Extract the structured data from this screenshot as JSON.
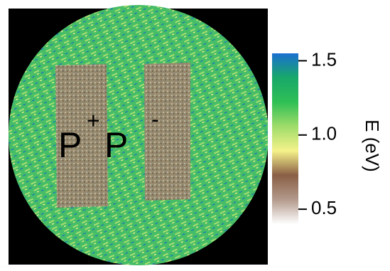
{
  "chart_data": {
    "type": "image",
    "annotations": [
      "P",
      "+",
      "P",
      "-"
    ],
    "colorbar": {
      "label": "E (eV)",
      "clim": [
        0.4,
        1.55
      ],
      "ticks": [
        0.5,
        {
          "value": 1,
          "label": "1.0"
        },
        1.5
      ],
      "colormap": [
        "#ffffff",
        "#b39a8c",
        "#8a5f45",
        "#f5f28a",
        "#9fdc6a",
        "#2fbf55",
        "#18a86a",
        "#1a6fd0"
      ]
    }
  }
}
